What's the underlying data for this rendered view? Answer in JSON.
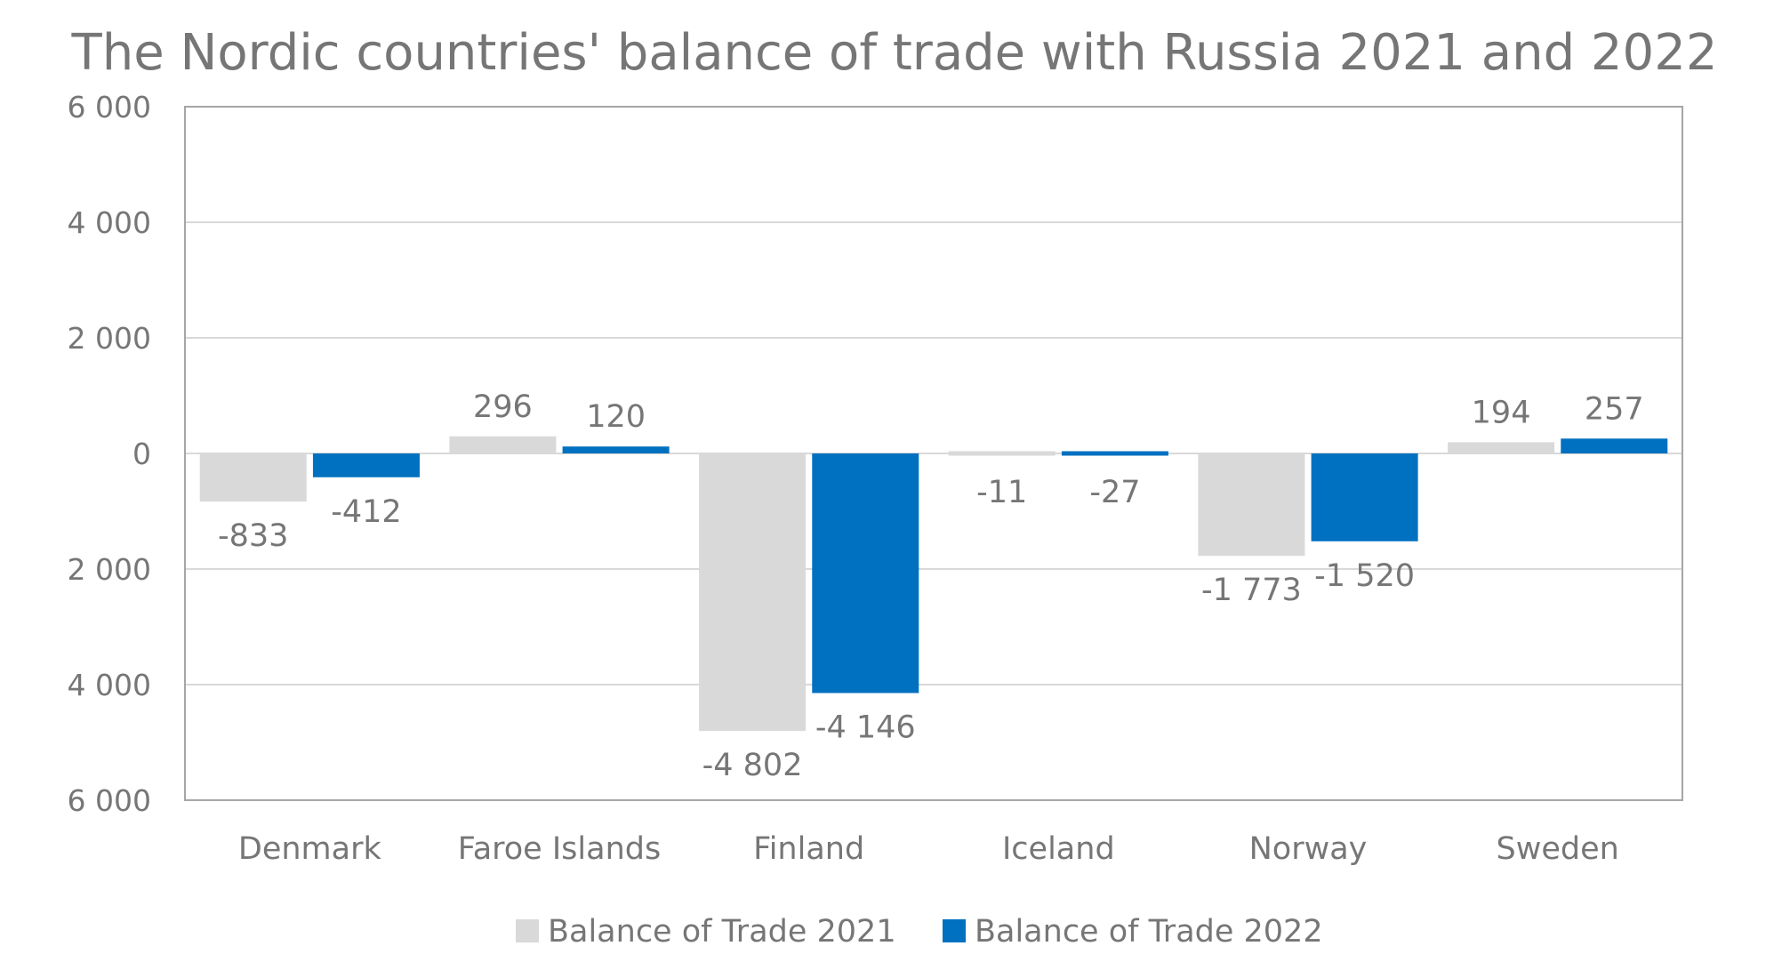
{
  "chart_data": {
    "type": "bar",
    "title": "The Nordic countries' balance of trade with Russia 2021 and 2022",
    "xlabel": "",
    "ylabel": "",
    "categories": [
      "Denmark",
      "Faroe Islands",
      "Finland",
      "Iceland",
      "Norway",
      "Sweden"
    ],
    "series": [
      {
        "name": "Balance of Trade 2021",
        "color": "#d9d9d9",
        "values": [
          -833,
          296,
          -4802,
          -11,
          -1773,
          194
        ],
        "labels": [
          "-833",
          "296",
          "-4 802",
          "-11",
          "-1 773",
          "194"
        ]
      },
      {
        "name": "Balance of Trade 2022",
        "color": "#0070c0",
        "values": [
          -412,
          120,
          -4146,
          -27,
          -1520,
          257
        ],
        "labels": [
          "-412",
          "120",
          "-4 146",
          "-27",
          "-1 520",
          "257"
        ]
      }
    ],
    "ylim": [
      -6000,
      6000
    ],
    "yticks": [
      6000,
      4000,
      2000,
      0,
      -2000,
      -4000,
      -6000
    ],
    "ytick_labels": [
      "6 000",
      "4 000",
      "2 000",
      "0",
      "2 000",
      "4 000",
      "6 000"
    ],
    "grid": true,
    "legend_position": "bottom"
  }
}
